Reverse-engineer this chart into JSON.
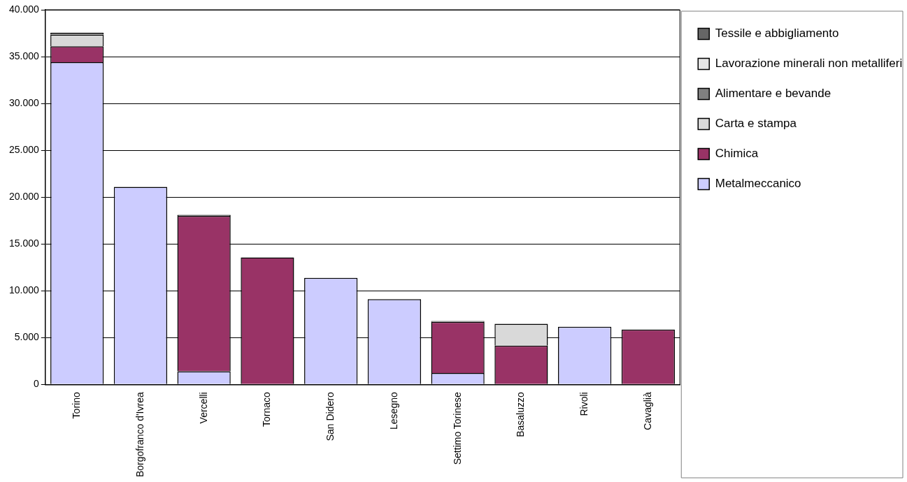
{
  "chart_data": {
    "type": "bar",
    "stacked": true,
    "categories": [
      "Torino",
      "Borgofranco d'Ivrea",
      "Vercelli",
      "Tornaco",
      "San Didero",
      "Lesegno",
      "Settimo Torinese",
      "Basaluzzo",
      "Rivoli",
      "Cavaglià"
    ],
    "series": [
      {
        "name": "Metalmeccanico",
        "color": "#ccccff",
        "values": [
          34400,
          21100,
          1400,
          null,
          11370,
          9100,
          1220,
          null,
          6150,
          null
        ]
      },
      {
        "name": "Chimica",
        "color": "#993366",
        "values": [
          1700,
          null,
          16600,
          13550,
          null,
          null,
          5450,
          4140,
          null,
          5850
        ]
      },
      {
        "name": "Carta e stampa",
        "color": "#d9d9d9",
        "values": [
          1250,
          null,
          null,
          null,
          null,
          null,
          null,
          2330,
          null,
          null
        ]
      },
      {
        "name": "Alimentare e bevande",
        "color": "#808080",
        "values": [
          null,
          null,
          100,
          null,
          null,
          null,
          100,
          null,
          null,
          null
        ]
      },
      {
        "name": "Lavorazione minerali non metalliferi",
        "color": "#e6e6e6",
        "values": [
          null,
          null,
          null,
          null,
          null,
          null,
          null,
          null,
          null,
          null
        ]
      },
      {
        "name": "Tessile e abbigliamento",
        "color": "#666666",
        "values": [
          200,
          null,
          null,
          null,
          null,
          null,
          null,
          null,
          null,
          null
        ]
      }
    ],
    "ylim": [
      0,
      40000
    ],
    "yticks": [
      0,
      {
        "value": 5000,
        "label": "5.000"
      },
      {
        "value": 10000,
        "label": "10.000"
      },
      {
        "value": 15000,
        "label": "15.000"
      },
      {
        "value": 20000,
        "label": "20.000"
      },
      {
        "value": 25000,
        "label": "25.000"
      },
      {
        "value": 30000,
        "label": "30.000"
      },
      {
        "value": 35000,
        "label": "35.000"
      },
      {
        "value": 40000,
        "label": "40.000"
      }
    ],
    "grid": "y",
    "legend": "right"
  }
}
